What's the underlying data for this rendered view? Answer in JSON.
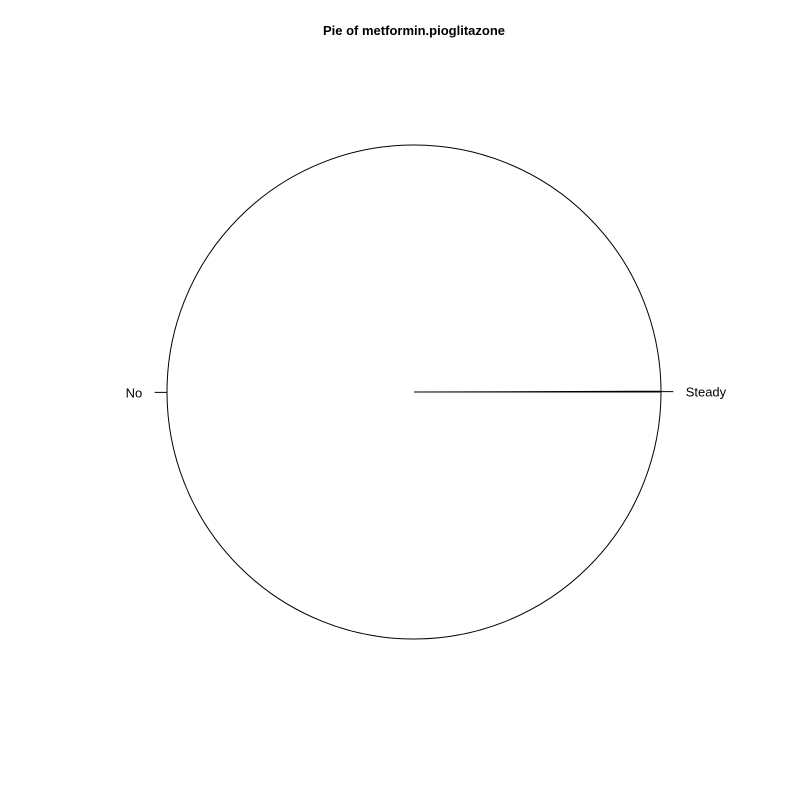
{
  "chart_data": {
    "type": "pie",
    "title": "Pie of metformin.pioglitazone",
    "labels": [
      "Steady",
      "No"
    ],
    "values": [
      0.0005,
      0.9995
    ],
    "colors": [
      "#FFFFFF",
      "#FFFFFF"
    ],
    "border_color": "#000000",
    "start_angle_degrees": 0,
    "direction": "counterclockwise"
  }
}
